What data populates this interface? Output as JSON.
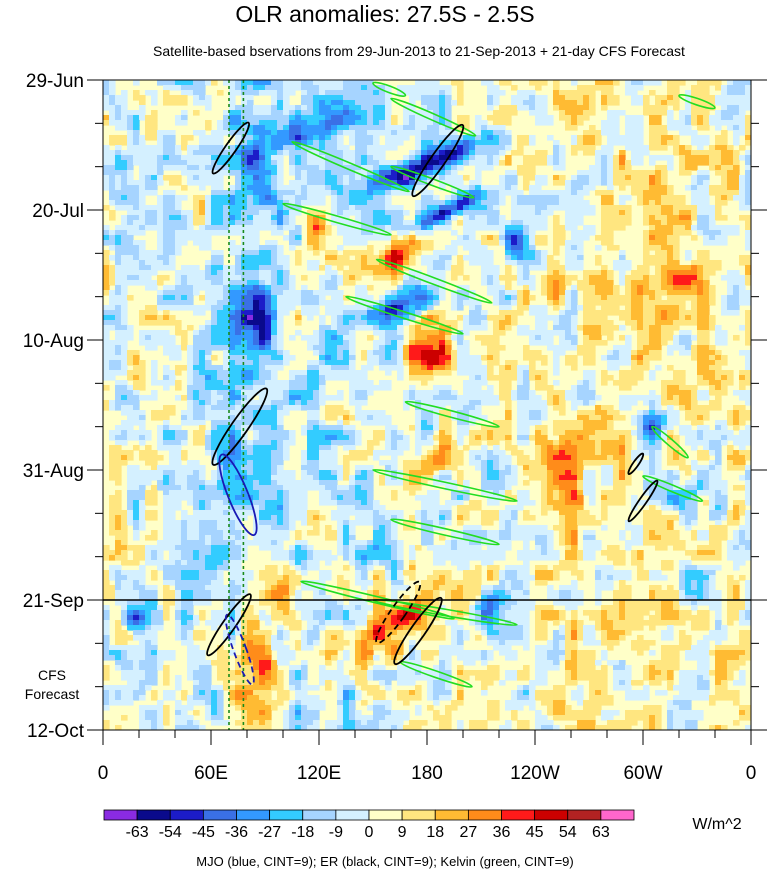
{
  "chart_data": {
    "type": "heatmap",
    "title": "OLR anomalies: 27.5S - 2.5S",
    "subtitle": "Satellite-based bservations from 29-Jun-2013 to 21-Sep-2013 + 21-day CFS Forecast",
    "x_axis": {
      "label": "",
      "range_deg_east": [
        0,
        360
      ],
      "ticks": [
        {
          "lon": 0,
          "label": "0"
        },
        {
          "lon": 60,
          "label": "60E"
        },
        {
          "lon": 120,
          "label": "120E"
        },
        {
          "lon": 180,
          "label": "180"
        },
        {
          "lon": 240,
          "label": "120W"
        },
        {
          "lon": 300,
          "label": "60W"
        },
        {
          "lon": 360,
          "label": "0"
        }
      ]
    },
    "y_axis": {
      "label": "",
      "range_days": [
        0,
        105
      ],
      "direction": "time increases downward",
      "ticks": [
        {
          "day": 0,
          "label": "29-Jun"
        },
        {
          "day": 21,
          "label": "20-Jul"
        },
        {
          "day": 42,
          "label": "10-Aug"
        },
        {
          "day": 63,
          "label": "31-Aug"
        },
        {
          "day": 84,
          "label": "21-Sep"
        },
        {
          "day": 105,
          "label": "12-Oct"
        }
      ]
    },
    "forecast_line": {
      "day": 84,
      "date": "21-Sep"
    },
    "forecast_label": [
      "CFS",
      "Forecast"
    ],
    "reference_longitudes": [
      70,
      78
    ],
    "colorbar": {
      "unit": "W/m^2",
      "levels": [
        -63,
        -54,
        -45,
        -36,
        -27,
        -18,
        -9,
        0,
        9,
        18,
        27,
        36,
        45,
        54,
        63
      ],
      "colors": [
        "#8a2be2",
        "#0a0a8c",
        "#1c1cc8",
        "#3a70e6",
        "#3399ff",
        "#33ccff",
        "#a6d4ff",
        "#d4f0ff",
        "#ffffc8",
        "#ffe680",
        "#ffbb33",
        "#ff8c1a",
        "#ff1a1a",
        "#cc0000",
        "#b22222",
        "#ff66cc"
      ]
    },
    "legend_text": "MJO (blue, CINT=9); ER (black, CINT=9); Kelvin (green, CINT=9)",
    "series": [
      {
        "name": "MJO",
        "color": "#1a1ab4",
        "contours": [
          {
            "lon": 75,
            "day": 67,
            "rx": 5.5,
            "ry": 7,
            "tilt": -22,
            "style": "solid"
          },
          {
            "lon": 76,
            "day": 92,
            "rx": 3.5,
            "ry": 6,
            "tilt": -20,
            "style": "dashed"
          }
        ]
      },
      {
        "name": "ER",
        "color": "#000000",
        "contours": [
          {
            "lon": 71,
            "day": 11,
            "rx": 3,
            "ry": 5,
            "tilt": 35,
            "style": "solid"
          },
          {
            "lon": 76,
            "day": 56,
            "rx": 4.5,
            "ry": 7.5,
            "tilt": 35,
            "style": "solid"
          },
          {
            "lon": 70,
            "day": 88,
            "rx": 3.5,
            "ry": 6,
            "tilt": 35,
            "style": "solid"
          },
          {
            "lon": 164,
            "day": 86,
            "rx": 4,
            "ry": 6,
            "tilt": 35,
            "style": "dashed"
          },
          {
            "lon": 175,
            "day": 89,
            "rx": 4,
            "ry": 6.5,
            "tilt": 35,
            "style": "solid"
          },
          {
            "lon": 186,
            "day": 13,
            "rx": 4,
            "ry": 7,
            "tilt": 35,
            "style": "solid"
          },
          {
            "lon": 296,
            "day": 62,
            "rx": 1.5,
            "ry": 2,
            "tilt": 35,
            "style": "solid"
          },
          {
            "lon": 300,
            "day": 68,
            "rx": 2,
            "ry": 4,
            "tilt": 35,
            "style": "solid"
          }
        ]
      },
      {
        "name": "Kelvin",
        "color": "#22dd22",
        "bands": [
          {
            "lon1": 150,
            "day1": 0.5,
            "lon2": 168,
            "day2": 2.5
          },
          {
            "lon1": 160,
            "day1": 3,
            "lon2": 207,
            "day2": 9
          },
          {
            "lon1": 105,
            "day1": 10,
            "lon2": 170,
            "day2": 18
          },
          {
            "lon1": 160,
            "day1": 14,
            "lon2": 206,
            "day2": 19
          },
          {
            "lon1": 100,
            "day1": 20,
            "lon2": 160,
            "day2": 25
          },
          {
            "lon1": 152,
            "day1": 29,
            "lon2": 216,
            "day2": 36
          },
          {
            "lon1": 135,
            "day1": 35,
            "lon2": 200,
            "day2": 41
          },
          {
            "lon1": 168,
            "day1": 52,
            "lon2": 220,
            "day2": 56
          },
          {
            "lon1": 305,
            "day1": 56,
            "lon2": 325,
            "day2": 61
          },
          {
            "lon1": 150,
            "day1": 63,
            "lon2": 230,
            "day2": 68
          },
          {
            "lon1": 300,
            "day1": 64,
            "lon2": 333,
            "day2": 68
          },
          {
            "lon1": 160,
            "day1": 71,
            "lon2": 220,
            "day2": 75
          },
          {
            "lon1": 110,
            "day1": 81,
            "lon2": 195,
            "day2": 87
          },
          {
            "lon1": 150,
            "day1": 84,
            "lon2": 230,
            "day2": 88
          },
          {
            "lon1": 165,
            "day1": 94,
            "lon2": 205,
            "day2": 98
          },
          {
            "lon1": 320,
            "day1": 2.5,
            "lon2": 340,
            "day2": 4.5
          }
        ]
      }
    ]
  }
}
